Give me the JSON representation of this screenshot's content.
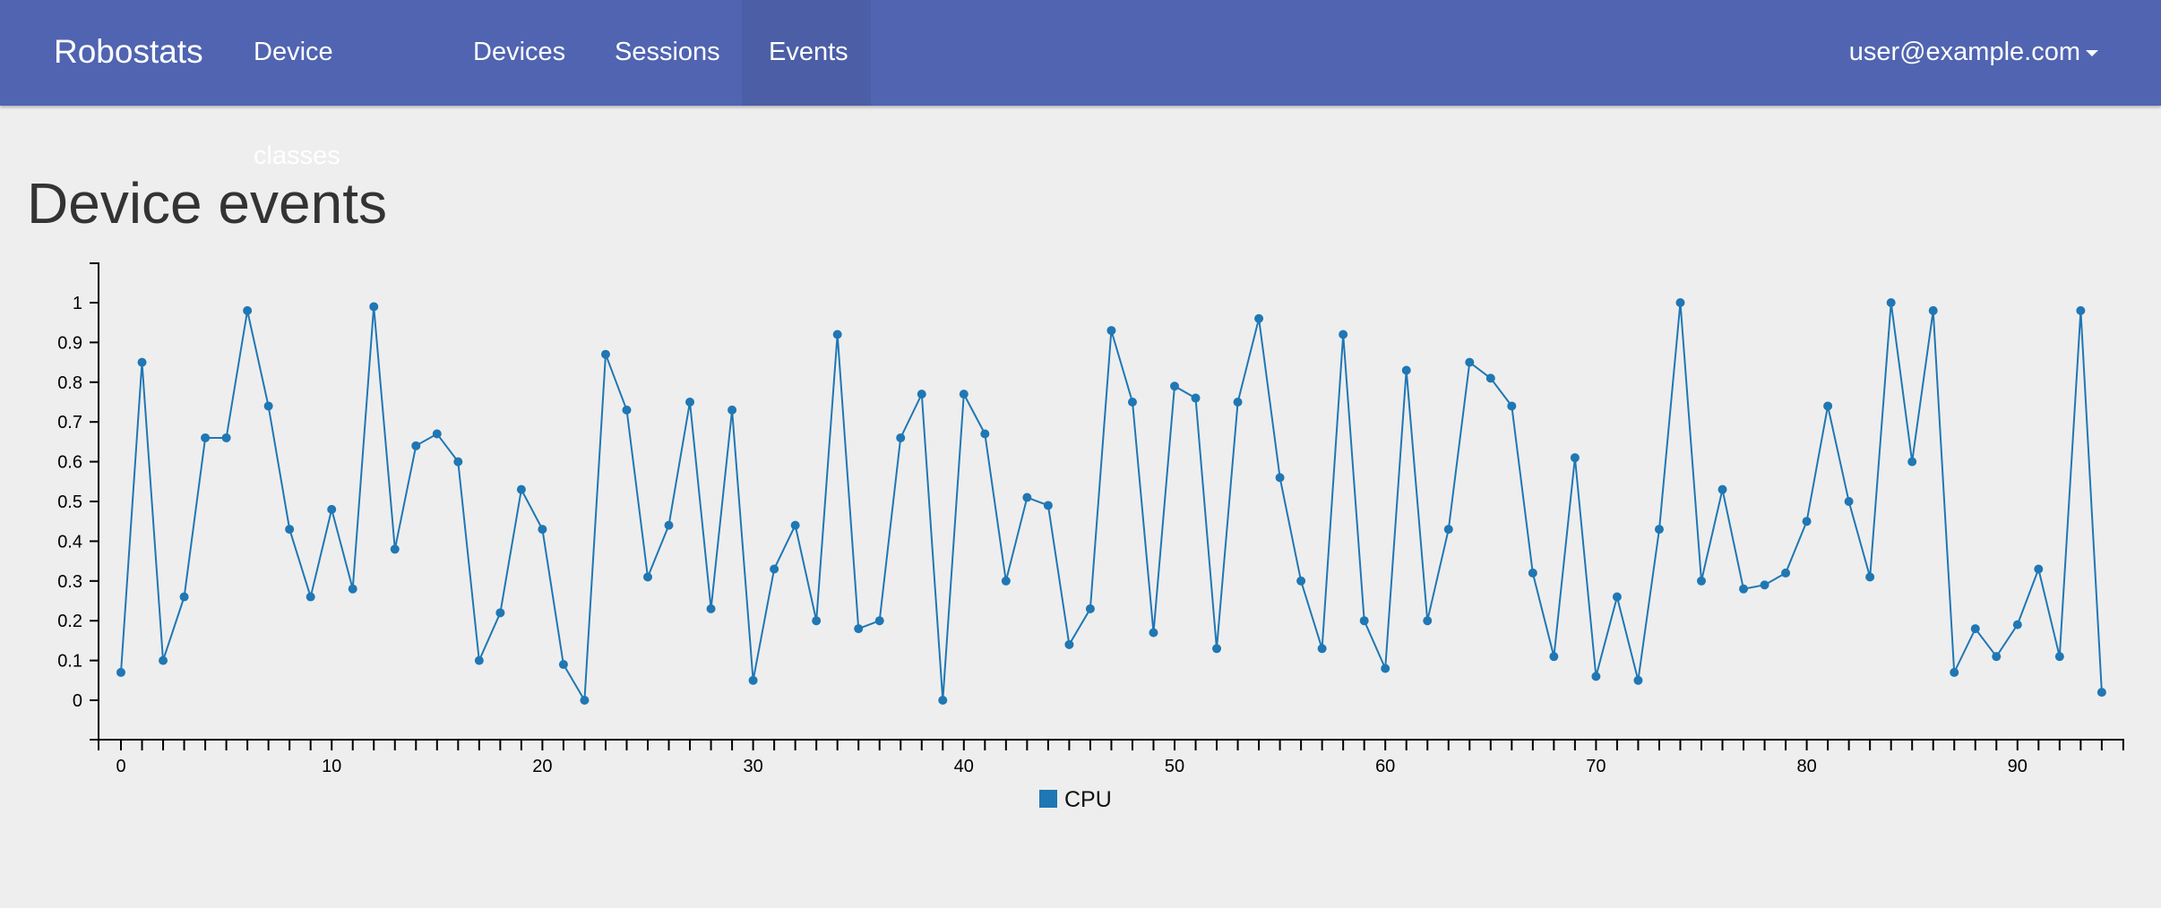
{
  "nav": {
    "brand": "Robostats",
    "links": [
      {
        "label": "Device classes"
      },
      {
        "label": "Devices"
      },
      {
        "label": "Sessions"
      },
      {
        "label": "Events",
        "active": true
      }
    ],
    "user": "user@example.com",
    "bar_color": "#5064b1"
  },
  "page": {
    "title": "Device events"
  },
  "chart_data": {
    "type": "line",
    "xlim": [
      0,
      94
    ],
    "ylim": [
      0,
      1
    ],
    "x_ticks": [
      "0",
      "10",
      "20",
      "30",
      "40",
      "50",
      "60",
      "70",
      "80",
      "90"
    ],
    "y_ticks": [
      "0",
      "0.1",
      "0.2",
      "0.3",
      "0.4",
      "0.5",
      "0.6",
      "0.7",
      "0.8",
      "0.9",
      "1"
    ],
    "legend_position": "bottom-center",
    "series": [
      {
        "name": "CPU",
        "color": "#1f77b4",
        "values": [
          0.07,
          0.85,
          0.1,
          0.26,
          0.66,
          0.66,
          0.98,
          0.74,
          0.43,
          0.26,
          0.48,
          0.28,
          0.99,
          0.38,
          0.64,
          0.67,
          0.6,
          0.1,
          0.22,
          0.53,
          0.43,
          0.09,
          0.0,
          0.87,
          0.73,
          0.31,
          0.44,
          0.75,
          0.23,
          0.73,
          0.05,
          0.33,
          0.44,
          0.2,
          0.92,
          0.18,
          0.2,
          0.66,
          0.77,
          0.0,
          0.77,
          0.67,
          0.3,
          0.51,
          0.49,
          0.14,
          0.23,
          0.93,
          0.75,
          0.17,
          0.79,
          0.76,
          0.13,
          0.75,
          0.96,
          0.56,
          0.3,
          0.13,
          0.92,
          0.2,
          0.08,
          0.83,
          0.2,
          0.43,
          0.85,
          0.81,
          0.74,
          0.32,
          0.11,
          0.61,
          0.06,
          0.26,
          0.05,
          0.43,
          1.0,
          0.3,
          0.53,
          0.28,
          0.29,
          0.32,
          0.45,
          0.74,
          0.5,
          0.31,
          1.0,
          0.6,
          0.98,
          0.07,
          0.18,
          0.11,
          0.19,
          0.33,
          0.11,
          0.98,
          0.02
        ]
      }
    ]
  }
}
